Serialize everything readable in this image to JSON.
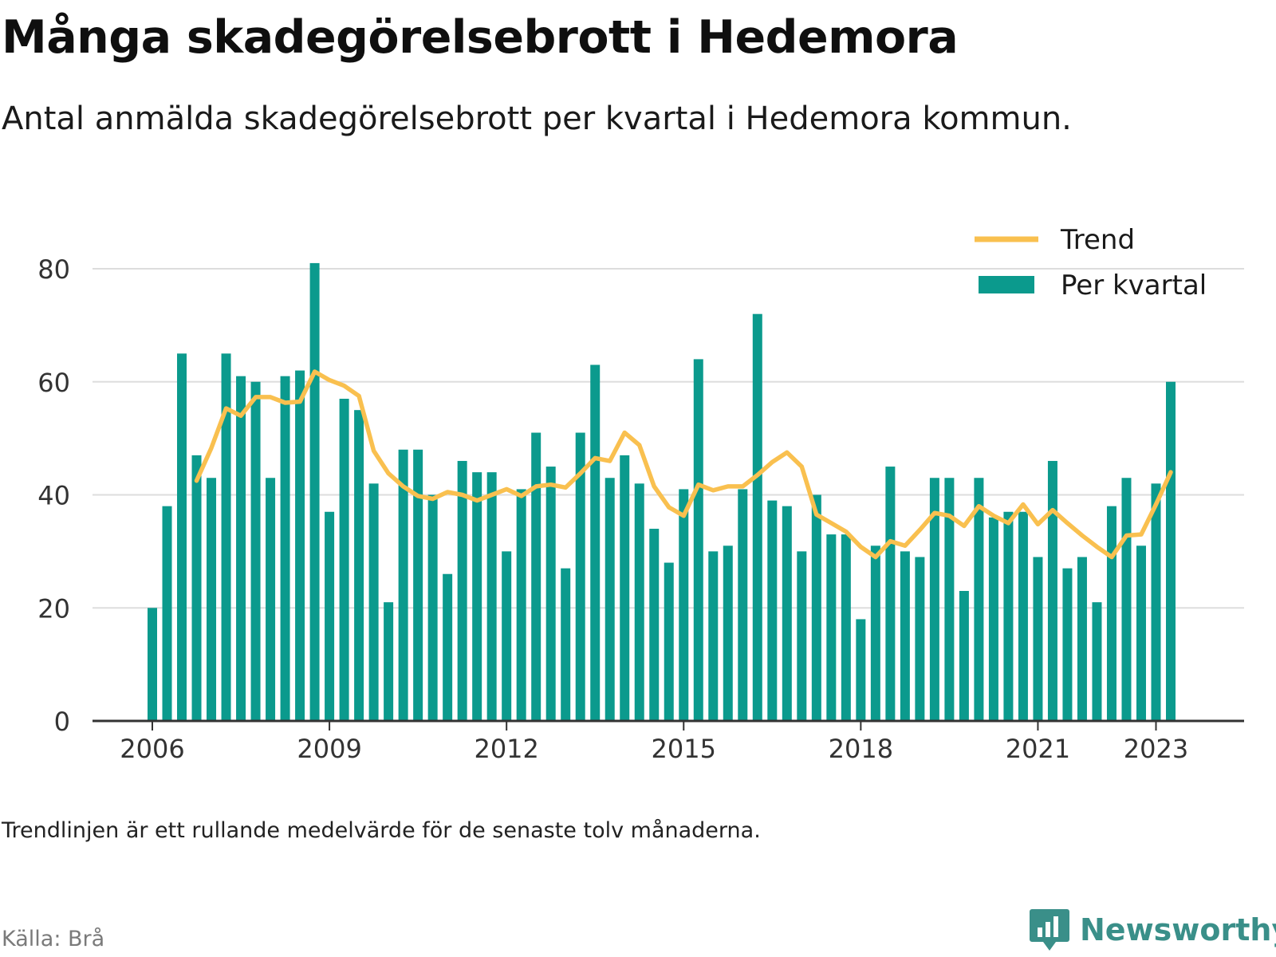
{
  "title": "Många skadegörelsebrott i Hedemora",
  "subtitle": "Antal anmälda skadegörelsebrott per kvartal i Hedemora kommun.",
  "note": "Trendlinjen är ett rullande medelvärde för de senaste tolv månaderna.",
  "source": "Källa: Brå",
  "brand": {
    "name": "Newsworthy",
    "icon": "newsworthy-logo-icon"
  },
  "colors": {
    "bars": "#0b9a8d",
    "trend": "#f9c04f",
    "grid": "#dddddd",
    "axis": "#333333",
    "text": "#333333"
  },
  "chart_data": {
    "type": "bar",
    "ylim": [
      0,
      80
    ],
    "yticks": [
      0,
      20,
      40,
      60,
      80
    ],
    "xticks": [
      "2006",
      "2009",
      "2012",
      "2015",
      "2018",
      "2021",
      "2023"
    ],
    "grid": true,
    "legend_position": "top-right",
    "series": [
      {
        "name": "Per kvartal",
        "type": "bar",
        "x": [
          "2006-Q1",
          "2006-Q2",
          "2006-Q3",
          "2006-Q4",
          "2007-Q1",
          "2007-Q2",
          "2007-Q3",
          "2007-Q4",
          "2008-Q1",
          "2008-Q2",
          "2008-Q3",
          "2008-Q4",
          "2009-Q1",
          "2009-Q2",
          "2009-Q3",
          "2009-Q4",
          "2010-Q1",
          "2010-Q2",
          "2010-Q3",
          "2010-Q4",
          "2011-Q1",
          "2011-Q2",
          "2011-Q3",
          "2011-Q4",
          "2012-Q1",
          "2012-Q2",
          "2012-Q3",
          "2012-Q4",
          "2013-Q1",
          "2013-Q2",
          "2013-Q3",
          "2013-Q4",
          "2014-Q1",
          "2014-Q2",
          "2014-Q3",
          "2014-Q4",
          "2015-Q1",
          "2015-Q2",
          "2015-Q3",
          "2015-Q4",
          "2016-Q1",
          "2016-Q2",
          "2016-Q3",
          "2016-Q4",
          "2017-Q1",
          "2017-Q2",
          "2017-Q3",
          "2017-Q4",
          "2018-Q1",
          "2018-Q2",
          "2018-Q3",
          "2018-Q4",
          "2019-Q1",
          "2019-Q2",
          "2019-Q3",
          "2019-Q4",
          "2020-Q1",
          "2020-Q2",
          "2020-Q3",
          "2020-Q4",
          "2021-Q1",
          "2021-Q2",
          "2021-Q3",
          "2021-Q4",
          "2022-Q1",
          "2022-Q2",
          "2022-Q3",
          "2022-Q4",
          "2023-Q1",
          "2023-Q2"
        ],
        "values": [
          20,
          38,
          65,
          47,
          43,
          65,
          61,
          60,
          43,
          61,
          62,
          81,
          37,
          57,
          55,
          42,
          21,
          48,
          48,
          40,
          26,
          46,
          44,
          44,
          30,
          41,
          51,
          45,
          27,
          51,
          63,
          43,
          47,
          42,
          34,
          28,
          41,
          64,
          30,
          31,
          41,
          72,
          39,
          38,
          30,
          40,
          33,
          33,
          18,
          31,
          45,
          30,
          29,
          43,
          43,
          23,
          43,
          36,
          37,
          37,
          29,
          46,
          27,
          29,
          21,
          38,
          43,
          31,
          42,
          60
        ]
      },
      {
        "name": "Trend",
        "type": "line",
        "x": [
          "2006-Q4",
          "2007-Q1",
          "2007-Q2",
          "2007-Q3",
          "2007-Q4",
          "2008-Q1",
          "2008-Q2",
          "2008-Q3",
          "2008-Q4",
          "2009-Q1",
          "2009-Q2",
          "2009-Q3",
          "2009-Q4",
          "2010-Q1",
          "2010-Q2",
          "2010-Q3",
          "2010-Q4",
          "2011-Q1",
          "2011-Q2",
          "2011-Q3",
          "2011-Q4",
          "2012-Q1",
          "2012-Q2",
          "2012-Q3",
          "2012-Q4",
          "2013-Q1",
          "2013-Q2",
          "2013-Q3",
          "2013-Q4",
          "2014-Q1",
          "2014-Q2",
          "2014-Q3",
          "2014-Q4",
          "2015-Q1",
          "2015-Q2",
          "2015-Q3",
          "2015-Q4",
          "2016-Q1",
          "2016-Q2",
          "2016-Q3",
          "2016-Q4",
          "2017-Q1",
          "2017-Q2",
          "2017-Q3",
          "2017-Q4",
          "2018-Q1",
          "2018-Q2",
          "2018-Q3",
          "2018-Q4",
          "2019-Q1",
          "2019-Q2",
          "2019-Q3",
          "2019-Q4",
          "2020-Q1",
          "2020-Q2",
          "2020-Q3",
          "2020-Q4",
          "2021-Q1",
          "2021-Q2",
          "2021-Q3",
          "2021-Q4",
          "2022-Q1",
          "2022-Q2",
          "2022-Q3",
          "2022-Q4",
          "2023-Q1",
          "2023-Q2"
        ],
        "values": [
          42.5,
          48.3,
          55.3,
          54.0,
          57.3,
          57.3,
          56.3,
          56.5,
          61.8,
          60.3,
          59.3,
          57.5,
          47.8,
          43.8,
          41.5,
          39.8,
          39.3,
          40.5,
          40.0,
          39.0,
          40.0,
          41.0,
          39.8,
          41.5,
          41.8,
          41.3,
          43.8,
          46.5,
          46.0,
          51.0,
          48.8,
          41.5,
          37.8,
          36.3,
          41.8,
          40.8,
          41.5,
          41.5,
          43.5,
          45.8,
          47.5,
          45.0,
          36.5,
          35.0,
          33.5,
          30.8,
          29.0,
          31.8,
          31.0,
          33.8,
          36.8,
          36.3,
          34.5,
          38.0,
          36.3,
          35.0,
          38.3,
          34.8,
          37.3,
          35.0,
          32.8,
          30.8,
          29.0,
          32.8,
          33.0,
          38.3,
          44.0
        ]
      }
    ]
  }
}
